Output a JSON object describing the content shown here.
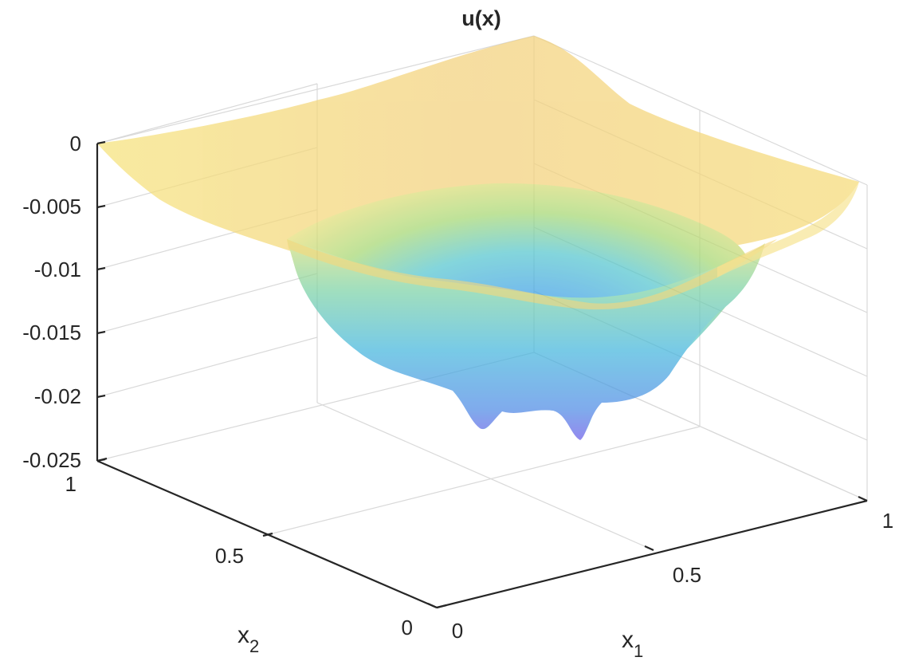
{
  "chart_data": {
    "type": "surface",
    "title": "u(x)",
    "xlabel": {
      "base": "x",
      "sub": "1"
    },
    "ylabel": {
      "base": "x",
      "sub": "2"
    },
    "zlabel": "",
    "xlim": [
      0,
      1
    ],
    "ylim": [
      0,
      1
    ],
    "zlim": [
      -0.025,
      0
    ],
    "x_ticks": [
      "0",
      "0.5",
      "1"
    ],
    "y_ticks": [
      "0",
      "0.5",
      "1"
    ],
    "z_ticks": [
      "0",
      "-0.005",
      "-0.01",
      "-0.015",
      "-0.02",
      "-0.025"
    ],
    "grid": true,
    "colormap": "parula",
    "face_alpha": 0.65,
    "surface": {
      "description_of_values": "u on unit square, zero on boundary, minimum near center",
      "min_value": -0.0235,
      "min_locations": [
        [
          0.42,
          0.55
        ],
        [
          0.58,
          0.45
        ]
      ]
    },
    "colors": {
      "low": "#6a5ce8",
      "mid_low": "#39a8e8",
      "mid": "#5cc8c8",
      "mid_high": "#a8d870",
      "high": "#f8e07a"
    }
  }
}
